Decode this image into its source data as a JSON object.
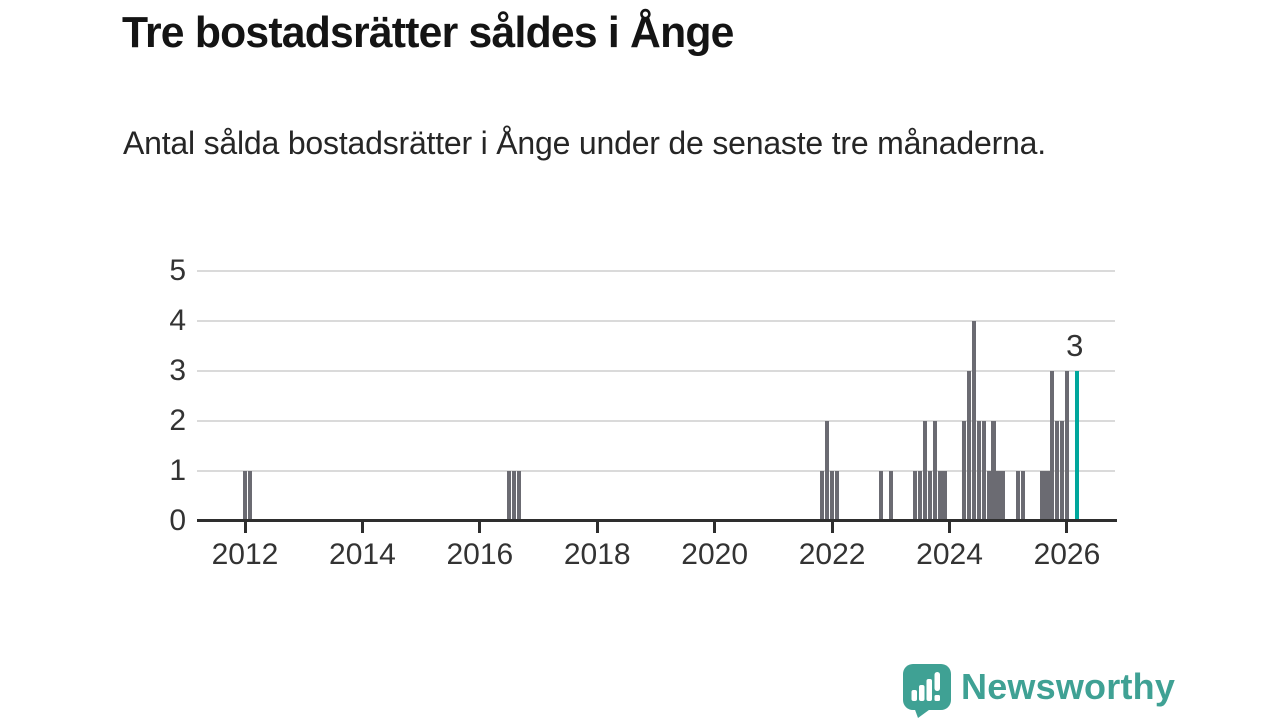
{
  "header": {
    "title": "Tre bostadsrätter såldes i Ånge",
    "subtitle": "Antal sålda bostadsrätter i Ånge under de senaste tre månaderna."
  },
  "chart_data": {
    "type": "bar",
    "title": "Tre bostadsrätter såldes i Ånge",
    "xlabel": "",
    "ylabel": "",
    "ylim": [
      0,
      5
    ],
    "y_ticks": [
      0,
      1,
      2,
      3,
      4,
      5
    ],
    "x_ticks": [
      2012,
      2014,
      2016,
      2018,
      2020,
      2022,
      2024,
      2026
    ],
    "grid": "horizontal",
    "legend": "none",
    "x_unit": "month",
    "series": [
      {
        "month": "2012-01",
        "value": 1
      },
      {
        "month": "2012-02",
        "value": 1
      },
      {
        "month": "2016-07",
        "value": 1
      },
      {
        "month": "2016-08",
        "value": 1
      },
      {
        "month": "2016-09",
        "value": 1
      },
      {
        "month": "2021-11",
        "value": 1
      },
      {
        "month": "2021-12",
        "value": 2
      },
      {
        "month": "2022-01",
        "value": 1
      },
      {
        "month": "2022-02",
        "value": 1
      },
      {
        "month": "2022-11",
        "value": 1
      },
      {
        "month": "2023-01",
        "value": 1
      },
      {
        "month": "2023-06",
        "value": 1
      },
      {
        "month": "2023-07",
        "value": 1
      },
      {
        "month": "2023-08",
        "value": 2
      },
      {
        "month": "2023-09",
        "value": 1
      },
      {
        "month": "2023-10",
        "value": 2
      },
      {
        "month": "2023-11",
        "value": 1
      },
      {
        "month": "2023-12",
        "value": 1
      },
      {
        "month": "2024-04",
        "value": 2
      },
      {
        "month": "2024-05",
        "value": 3
      },
      {
        "month": "2024-06",
        "value": 4
      },
      {
        "month": "2024-07",
        "value": 2
      },
      {
        "month": "2024-08",
        "value": 2
      },
      {
        "month": "2024-09",
        "value": 1
      },
      {
        "month": "2024-10",
        "value": 2
      },
      {
        "month": "2024-11",
        "value": 1
      },
      {
        "month": "2024-12",
        "value": 1
      },
      {
        "month": "2025-03",
        "value": 1
      },
      {
        "month": "2025-04",
        "value": 1
      },
      {
        "month": "2025-08",
        "value": 1
      },
      {
        "month": "2025-09",
        "value": 1
      },
      {
        "month": "2025-10",
        "value": 3
      },
      {
        "month": "2025-11",
        "value": 2
      },
      {
        "month": "2025-12",
        "value": 2
      },
      {
        "month": "2026-01",
        "value": 3
      },
      {
        "month": "2026-03",
        "value": 3,
        "highlight": true
      }
    ],
    "annotation": {
      "text": "3",
      "month": "2026-03"
    },
    "colors": {
      "bar": "#6b6b72",
      "highlight": "#00a79c",
      "gridline": "#dadada",
      "axis": "#2e2e2e",
      "text": "#333333"
    }
  },
  "footer": {
    "brand": "Newsworthy",
    "brand_color": "#3fa194",
    "logo_icon": "bar-chart-exclamation-speech-bubble"
  }
}
